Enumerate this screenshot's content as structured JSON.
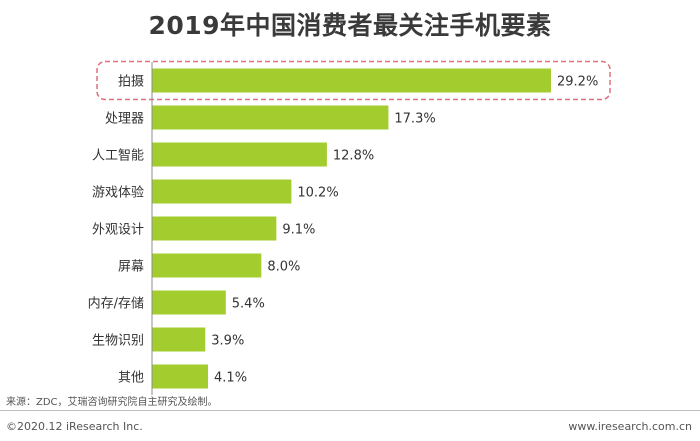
{
  "colors": {
    "bar": "#a3cc2e",
    "highlight": "#e0707a",
    "axis": "#8c8c8c"
  },
  "chart_data": {
    "type": "bar",
    "orientation": "horizontal",
    "title": "2019年中国消费者最关注手机要素",
    "categories": [
      "拍摄",
      "处理器",
      "人工智能",
      "游戏体验",
      "外观设计",
      "屏幕",
      "内存/存储",
      "生物识别",
      "其他"
    ],
    "values": [
      29.2,
      17.3,
      12.8,
      10.2,
      9.1,
      8.0,
      5.4,
      3.9,
      4.1
    ],
    "value_labels": [
      "29.2%",
      "17.3%",
      "12.8%",
      "10.2%",
      "9.1%",
      "8.0%",
      "5.4%",
      "3.9%",
      "4.1%"
    ],
    "value_unit": "%",
    "highlighted_category": "拍摄",
    "xlim": [
      0,
      29.2
    ],
    "grid": false,
    "legend": "none"
  },
  "footer": {
    "source": "来源：ZDC，艾瑞咨询研究院自主研究及绘制。",
    "copyright": "©2020.12 iResearch Inc.",
    "website": "www.iresearch.com.cn"
  }
}
